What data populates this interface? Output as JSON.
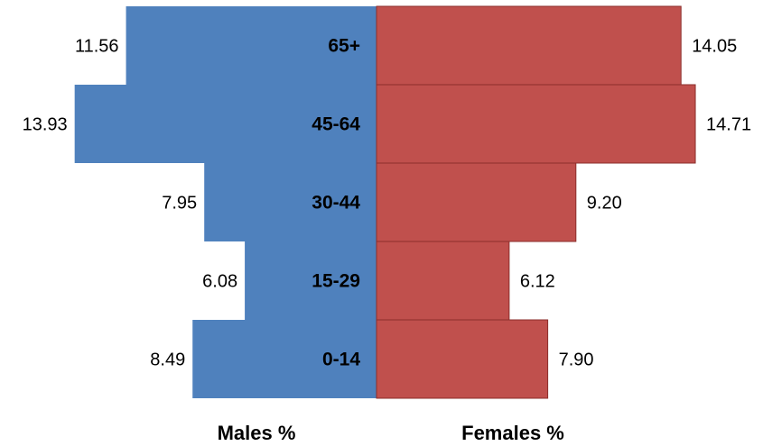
{
  "chart_data": {
    "type": "bar",
    "orientation": "horizontal",
    "layout": "population-pyramid",
    "categories": [
      "0-14",
      "15-29",
      "30-44",
      "45-64",
      "65+"
    ],
    "series": [
      {
        "name": "Males %",
        "side": "left",
        "color": "#4F81BD",
        "values": [
          8.49,
          6.08,
          7.95,
          13.93,
          11.56
        ],
        "labels": [
          "8.49",
          "6.08",
          "7.95",
          "13.93",
          "11.56"
        ]
      },
      {
        "name": "Females %",
        "side": "right",
        "color": "#C0504D",
        "values": [
          7.9,
          6.12,
          9.2,
          14.71,
          14.05
        ],
        "labels": [
          "7.90",
          "6.12",
          "9.20",
          "14.71",
          "14.05"
        ]
      }
    ],
    "xlabel_left": "Males %",
    "xlabel_right": "Females %",
    "xlim": [
      0,
      15
    ],
    "grid": false,
    "legend": "none"
  }
}
